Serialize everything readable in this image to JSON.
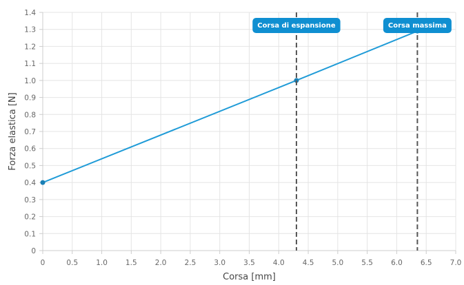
{
  "chart_data": {
    "type": "line",
    "xlabel": "Corsa [mm]",
    "ylabel": "Forza elastica [N]",
    "xlim": [
      0,
      7.0
    ],
    "ylim": [
      0,
      1.4
    ],
    "x_ticks": [
      "0",
      "0.5",
      "1.0",
      "1.5",
      "2.0",
      "2.5",
      "3.0",
      "3.5",
      "4.0",
      "4.5",
      "5.0",
      "5.5",
      "6.0",
      "6.5",
      "7.0"
    ],
    "y_ticks": [
      "0",
      "0.1",
      "0.2",
      "0.3",
      "0.4",
      "0.5",
      "0.6",
      "0.7",
      "0.8",
      "0.9",
      "1.0",
      "1.1",
      "1.2",
      "1.3",
      "1.4"
    ],
    "grid": true,
    "series": [
      {
        "x": [
          0,
          4.3,
          6.35
        ],
        "y": [
          0.4,
          1.0,
          1.29
        ],
        "color": "#1f9bd7"
      }
    ],
    "annotations": [
      {
        "label": "Corsa di espansione",
        "x": 4.3,
        "style": "dashed-vertical-line"
      },
      {
        "label": "Corsa massima",
        "x": 6.35,
        "style": "dashed-vertical-line"
      }
    ],
    "colors": {
      "line": "#1f9bd7",
      "point": "#1a7fb5",
      "annotation_box": "#0f8fd1",
      "annotation_line": "#555555",
      "grid": "#e4e4e4"
    }
  }
}
